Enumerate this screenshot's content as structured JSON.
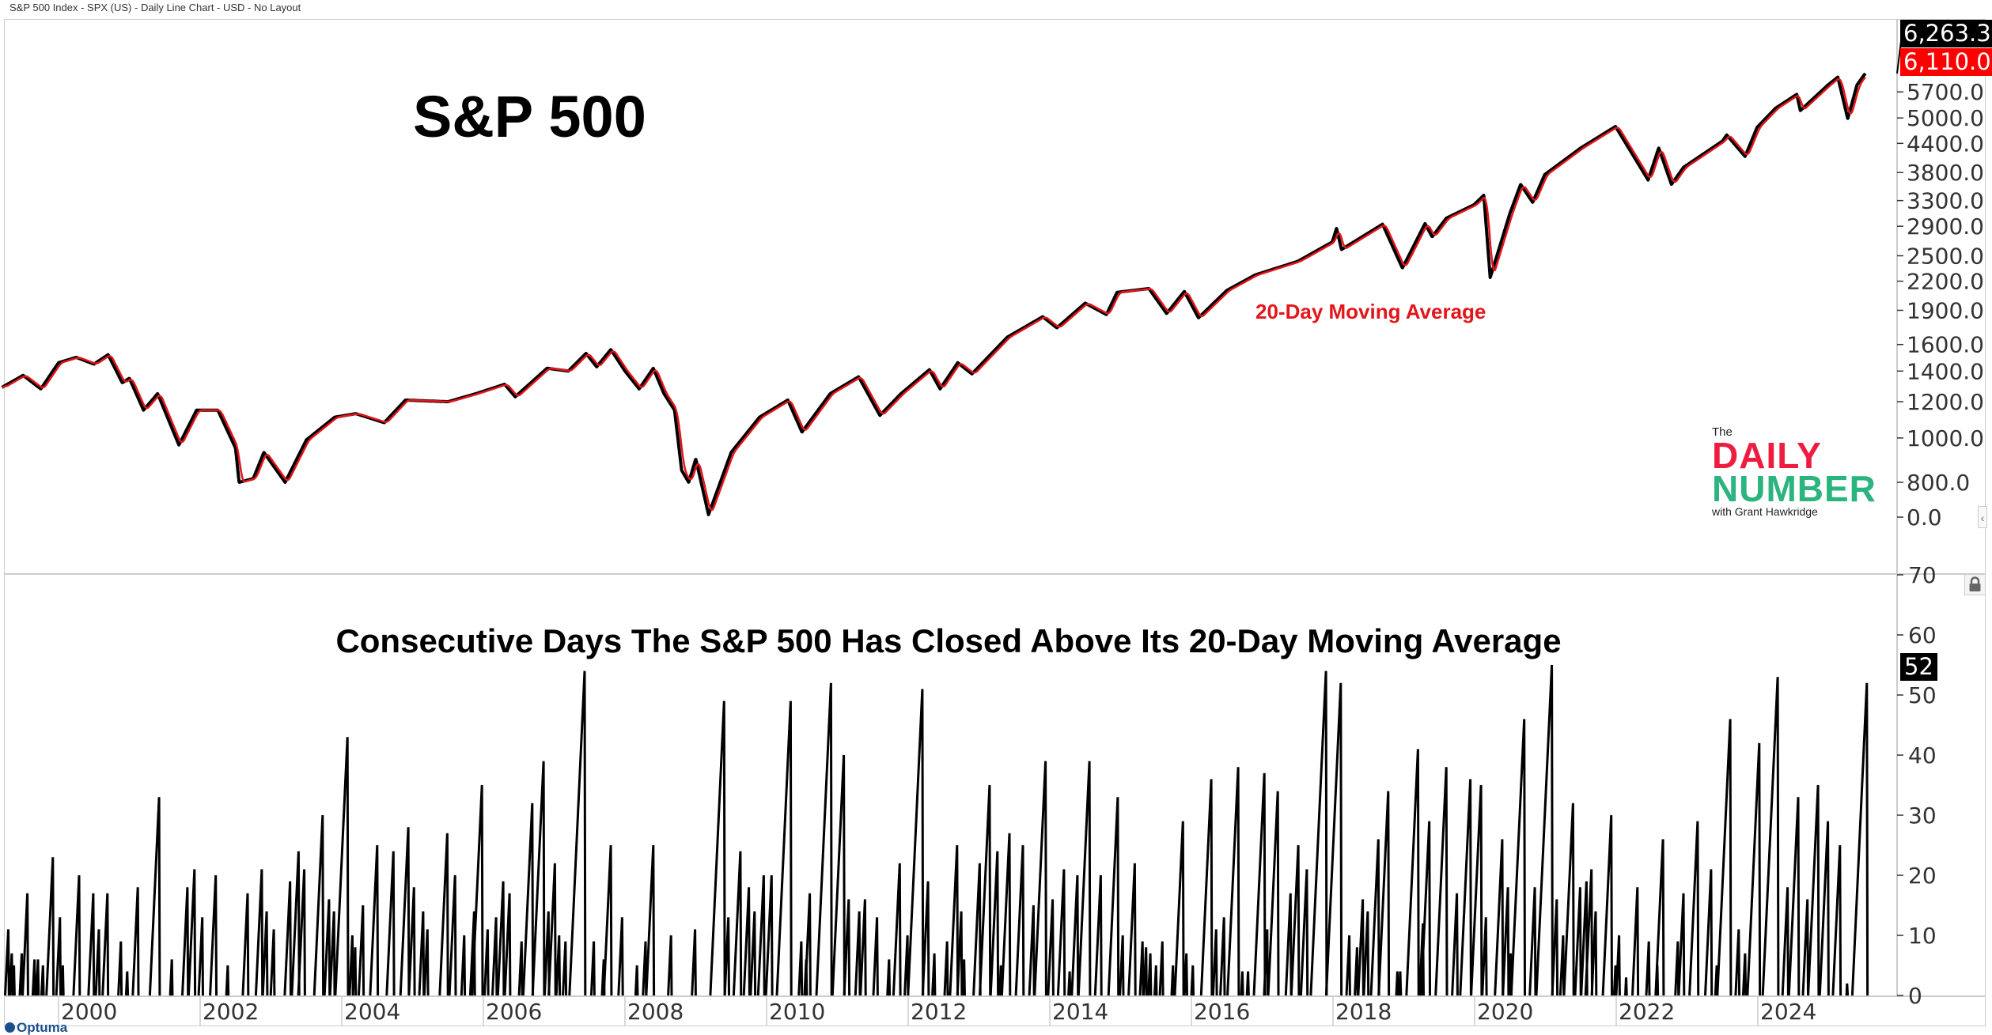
{
  "header": {
    "title": "S&P 500 Index - SPX (US) - Daily Line Chart - USD - No Layout"
  },
  "annotations": {
    "main_title": "S&P 500",
    "ma_label": "20-Day Moving Average",
    "lower_title": "Consecutive Days The S&P 500 Has Closed Above Its 20-Day Moving Average"
  },
  "colors": {
    "price": "#000000",
    "moving_average": "#e3151a",
    "counter": "#000000",
    "ma_label": "#e3151a",
    "logo_red": "#ee1d3f",
    "logo_green": "#2bb47d"
  },
  "logo": {
    "the": "The",
    "daily": "DAILY",
    "number": "NUMBER",
    "with": "with Grant Hawkridge"
  },
  "branding": {
    "optuma": "Optuma"
  },
  "icons": {
    "lock": "lock-icon",
    "collapse": "chevron-left-icon"
  },
  "chart_data": [
    {
      "type": "line",
      "title": "S&P 500",
      "scale": "log",
      "x_ticks": [
        "2000",
        "2002",
        "2004",
        "2006",
        "2008",
        "2010",
        "2012",
        "2014",
        "2016",
        "2018",
        "2020",
        "2022",
        "2024"
      ],
      "y_ticks": [
        "0.0",
        "800.0",
        "1000.0",
        "1200.0",
        "1400.0",
        "1600.0",
        "1900.0",
        "2200.0",
        "2500.0",
        "2900.0",
        "3300.0",
        "3800.0",
        "4400.0",
        "5000.0",
        "5700.0"
      ],
      "last_value_label": "6,263.3",
      "ma_value_label": "6,110.0",
      "series": [
        {
          "name": "",
          "role": "price",
          "points": [
            [
              1999.2,
              1290
            ],
            [
              1999.5,
              1370
            ],
            [
              1999.75,
              1280
            ],
            [
              2000.0,
              1460
            ],
            [
              2000.25,
              1500
            ],
            [
              2000.5,
              1450
            ],
            [
              2000.7,
              1520
            ],
            [
              2000.9,
              1320
            ],
            [
              2001.0,
              1350
            ],
            [
              2001.2,
              1150
            ],
            [
              2001.4,
              1250
            ],
            [
              2001.7,
              965
            ],
            [
              2001.95,
              1150
            ],
            [
              2002.25,
              1150
            ],
            [
              2002.5,
              950
            ],
            [
              2002.55,
              800
            ],
            [
              2002.75,
              815
            ],
            [
              2002.9,
              930
            ],
            [
              2003.2,
              800
            ],
            [
              2003.5,
              990
            ],
            [
              2003.9,
              1110
            ],
            [
              2004.2,
              1130
            ],
            [
              2004.6,
              1080
            ],
            [
              2004.9,
              1210
            ],
            [
              2005.5,
              1200
            ],
            [
              2005.9,
              1250
            ],
            [
              2006.3,
              1310
            ],
            [
              2006.45,
              1230
            ],
            [
              2006.9,
              1420
            ],
            [
              2007.2,
              1400
            ],
            [
              2007.45,
              1530
            ],
            [
              2007.6,
              1430
            ],
            [
              2007.8,
              1560
            ],
            [
              2008.0,
              1400
            ],
            [
              2008.2,
              1280
            ],
            [
              2008.4,
              1420
            ],
            [
              2008.55,
              1250
            ],
            [
              2008.7,
              1150
            ],
            [
              2008.8,
              850
            ],
            [
              2008.9,
              800
            ],
            [
              2009.0,
              900
            ],
            [
              2009.18,
              680
            ],
            [
              2009.5,
              930
            ],
            [
              2009.9,
              1110
            ],
            [
              2010.3,
              1210
            ],
            [
              2010.5,
              1030
            ],
            [
              2010.9,
              1250
            ],
            [
              2011.3,
              1360
            ],
            [
              2011.6,
              1120
            ],
            [
              2011.9,
              1250
            ],
            [
              2012.3,
              1410
            ],
            [
              2012.45,
              1280
            ],
            [
              2012.7,
              1460
            ],
            [
              2012.9,
              1380
            ],
            [
              2013.4,
              1660
            ],
            [
              2013.9,
              1840
            ],
            [
              2014.1,
              1740
            ],
            [
              2014.5,
              1970
            ],
            [
              2014.8,
              1860
            ],
            [
              2014.95,
              2080
            ],
            [
              2015.4,
              2120
            ],
            [
              2015.65,
              1870
            ],
            [
              2015.9,
              2090
            ],
            [
              2016.1,
              1830
            ],
            [
              2016.5,
              2100
            ],
            [
              2016.9,
              2270
            ],
            [
              2017.5,
              2430
            ],
            [
              2017.99,
              2680
            ],
            [
              2018.05,
              2870
            ],
            [
              2018.12,
              2580
            ],
            [
              2018.7,
              2930
            ],
            [
              2018.98,
              2350
            ],
            [
              2019.3,
              2940
            ],
            [
              2019.4,
              2750
            ],
            [
              2019.6,
              3020
            ],
            [
              2019.99,
              3230
            ],
            [
              2020.13,
              3390
            ],
            [
              2020.22,
              2240
            ],
            [
              2020.5,
              3100
            ],
            [
              2020.65,
              3580
            ],
            [
              2020.82,
              3270
            ],
            [
              2020.99,
              3760
            ],
            [
              2021.5,
              4300
            ],
            [
              2021.99,
              4790
            ],
            [
              2022.45,
              3660
            ],
            [
              2022.6,
              4300
            ],
            [
              2022.78,
              3580
            ],
            [
              2022.95,
              3900
            ],
            [
              2023.5,
              4450
            ],
            [
              2023.56,
              4590
            ],
            [
              2023.82,
              4120
            ],
            [
              2023.99,
              4770
            ],
            [
              2024.25,
              5250
            ],
            [
              2024.55,
              5630
            ],
            [
              2024.6,
              5190
            ],
            [
              2024.99,
              5900
            ],
            [
              2025.13,
              6140
            ],
            [
              2025.27,
              4980
            ],
            [
              2025.4,
              5900
            ],
            [
              2025.52,
              6263.3
            ]
          ]
        },
        {
          "name": "20-Day Moving Average",
          "role": "moving_average",
          "period_days": 20
        }
      ]
    },
    {
      "type": "line",
      "title": "Consecutive Days The S&P 500 Has Closed Above Its 20-Day Moving Average",
      "ylim": [
        0,
        70
      ],
      "y_ticks": [
        "0",
        "10",
        "20",
        "30",
        "40",
        "50",
        "60",
        "70"
      ],
      "last_value_label": "52",
      "run_peaks": [
        [
          1999.29,
          11
        ],
        [
          1999.34,
          7
        ],
        [
          1999.37,
          5
        ],
        [
          1999.48,
          7
        ],
        [
          1999.56,
          17
        ],
        [
          1999.66,
          6
        ],
        [
          1999.71,
          6
        ],
        [
          1999.78,
          5
        ],
        [
          1999.92,
          23
        ],
        [
          2000.02,
          13
        ],
        [
          2000.06,
          5
        ],
        [
          2000.29,
          20
        ],
        [
          2000.49,
          17
        ],
        [
          2000.57,
          11
        ],
        [
          2000.69,
          17
        ],
        [
          2000.88,
          9
        ],
        [
          2000.97,
          4
        ],
        [
          2001.12,
          18
        ],
        [
          2001.42,
          33
        ],
        [
          2001.6,
          6
        ],
        [
          2001.82,
          18
        ],
        [
          2001.92,
          21
        ],
        [
          2002.03,
          13
        ],
        [
          2002.22,
          20
        ],
        [
          2002.39,
          5
        ],
        [
          2002.67,
          17
        ],
        [
          2002.87,
          21
        ],
        [
          2002.94,
          14
        ],
        [
          2003.04,
          11
        ],
        [
          2003.27,
          19
        ],
        [
          2003.39,
          24
        ],
        [
          2003.47,
          21
        ],
        [
          2003.73,
          30
        ],
        [
          2003.82,
          16
        ],
        [
          2003.89,
          14
        ],
        [
          2004.08,
          43
        ],
        [
          2004.15,
          10
        ],
        [
          2004.19,
          8
        ],
        [
          2004.3,
          15
        ],
        [
          2004.5,
          25
        ],
        [
          2004.73,
          24
        ],
        [
          2004.94,
          28
        ],
        [
          2005.02,
          18
        ],
        [
          2005.15,
          14
        ],
        [
          2005.21,
          11
        ],
        [
          2005.49,
          27
        ],
        [
          2005.6,
          20
        ],
        [
          2005.73,
          10
        ],
        [
          2005.87,
          14
        ],
        [
          2005.98,
          35
        ],
        [
          2006.06,
          11
        ],
        [
          2006.18,
          13
        ],
        [
          2006.28,
          19
        ],
        [
          2006.37,
          17
        ],
        [
          2006.54,
          9
        ],
        [
          2006.69,
          32
        ],
        [
          2006.85,
          39
        ],
        [
          2006.92,
          14
        ],
        [
          2007.01,
          22
        ],
        [
          2007.07,
          10
        ],
        [
          2007.16,
          9
        ],
        [
          2007.43,
          54
        ],
        [
          2007.56,
          9
        ],
        [
          2007.7,
          6
        ],
        [
          2007.8,
          25
        ],
        [
          2007.96,
          13
        ],
        [
          2008.17,
          5
        ],
        [
          2008.29,
          9
        ],
        [
          2008.4,
          25
        ],
        [
          2008.65,
          10
        ],
        [
          2008.99,
          11
        ],
        [
          2009.4,
          49
        ],
        [
          2009.46,
          13
        ],
        [
          2009.63,
          24
        ],
        [
          2009.75,
          18
        ],
        [
          2009.83,
          14
        ],
        [
          2009.96,
          20
        ],
        [
          2010.07,
          20
        ],
        [
          2010.34,
          49
        ],
        [
          2010.49,
          9
        ],
        [
          2010.56,
          6
        ],
        [
          2010.61,
          17
        ],
        [
          2010.91,
          52
        ],
        [
          2011.09,
          40
        ],
        [
          2011.16,
          16
        ],
        [
          2011.31,
          14
        ],
        [
          2011.39,
          16
        ],
        [
          2011.56,
          13
        ],
        [
          2011.73,
          6
        ],
        [
          2011.88,
          22
        ],
        [
          2011.99,
          10
        ],
        [
          2012.2,
          51
        ],
        [
          2012.28,
          19
        ],
        [
          2012.37,
          7
        ],
        [
          2012.55,
          9
        ],
        [
          2012.69,
          25
        ],
        [
          2012.75,
          14
        ],
        [
          2012.79,
          6
        ],
        [
          2013.01,
          22
        ],
        [
          2013.15,
          35
        ],
        [
          2013.26,
          24
        ],
        [
          2013.31,
          5
        ],
        [
          2013.43,
          27
        ],
        [
          2013.62,
          25
        ],
        [
          2013.77,
          15
        ],
        [
          2013.94,
          39
        ],
        [
          2014.04,
          16
        ],
        [
          2014.2,
          21
        ],
        [
          2014.28,
          4
        ],
        [
          2014.39,
          20
        ],
        [
          2014.56,
          39
        ],
        [
          2014.72,
          20
        ],
        [
          2014.96,
          33
        ],
        [
          2015.03,
          10
        ],
        [
          2015.2,
          22
        ],
        [
          2015.31,
          9
        ],
        [
          2015.36,
          8
        ],
        [
          2015.42,
          7
        ],
        [
          2015.5,
          5
        ],
        [
          2015.59,
          9
        ],
        [
          2015.74,
          5
        ],
        [
          2015.88,
          29
        ],
        [
          2015.93,
          7
        ],
        [
          2016.02,
          5
        ],
        [
          2016.28,
          36
        ],
        [
          2016.35,
          11
        ],
        [
          2016.46,
          13
        ],
        [
          2016.66,
          38
        ],
        [
          2016.72,
          4
        ],
        [
          2016.8,
          4
        ],
        [
          2017.03,
          37
        ],
        [
          2017.07,
          11
        ],
        [
          2017.22,
          34
        ],
        [
          2017.4,
          17
        ],
        [
          2017.51,
          25
        ],
        [
          2017.63,
          21
        ],
        [
          2017.9,
          54
        ],
        [
          2018.11,
          52
        ],
        [
          2018.23,
          10
        ],
        [
          2018.34,
          8
        ],
        [
          2018.42,
          16
        ],
        [
          2018.49,
          14
        ],
        [
          2018.64,
          26
        ],
        [
          2018.78,
          34
        ],
        [
          2018.91,
          4
        ],
        [
          2018.95,
          4
        ],
        [
          2019.2,
          41
        ],
        [
          2019.27,
          12
        ],
        [
          2019.36,
          29
        ],
        [
          2019.6,
          38
        ],
        [
          2019.75,
          17
        ],
        [
          2019.94,
          36
        ],
        [
          2020.09,
          35
        ],
        [
          2020.16,
          13
        ],
        [
          2020.39,
          26
        ],
        [
          2020.47,
          18
        ],
        [
          2020.51,
          7
        ],
        [
          2020.7,
          46
        ],
        [
          2020.85,
          18
        ],
        [
          2021.09,
          55
        ],
        [
          2021.16,
          16
        ],
        [
          2021.25,
          10
        ],
        [
          2021.39,
          32
        ],
        [
          2021.49,
          18
        ],
        [
          2021.58,
          19
        ],
        [
          2021.65,
          21
        ],
        [
          2021.71,
          14
        ],
        [
          2021.93,
          30
        ],
        [
          2021.99,
          5
        ],
        [
          2022.04,
          10
        ],
        [
          2022.14,
          3
        ],
        [
          2022.3,
          18
        ],
        [
          2022.46,
          9
        ],
        [
          2022.58,
          5
        ],
        [
          2022.66,
          26
        ],
        [
          2022.87,
          9
        ],
        [
          2022.95,
          17
        ],
        [
          2023.15,
          29
        ],
        [
          2023.34,
          21
        ],
        [
          2023.42,
          5
        ],
        [
          2023.61,
          46
        ],
        [
          2023.73,
          11
        ],
        [
          2023.82,
          7
        ],
        [
          2024.02,
          42
        ],
        [
          2024.28,
          53
        ],
        [
          2024.42,
          18
        ],
        [
          2024.57,
          33
        ],
        [
          2024.7,
          16
        ],
        [
          2024.85,
          35
        ],
        [
          2024.99,
          29
        ],
        [
          2025.16,
          25
        ],
        [
          2025.26,
          2
        ],
        [
          2025.54,
          52
        ]
      ]
    }
  ]
}
